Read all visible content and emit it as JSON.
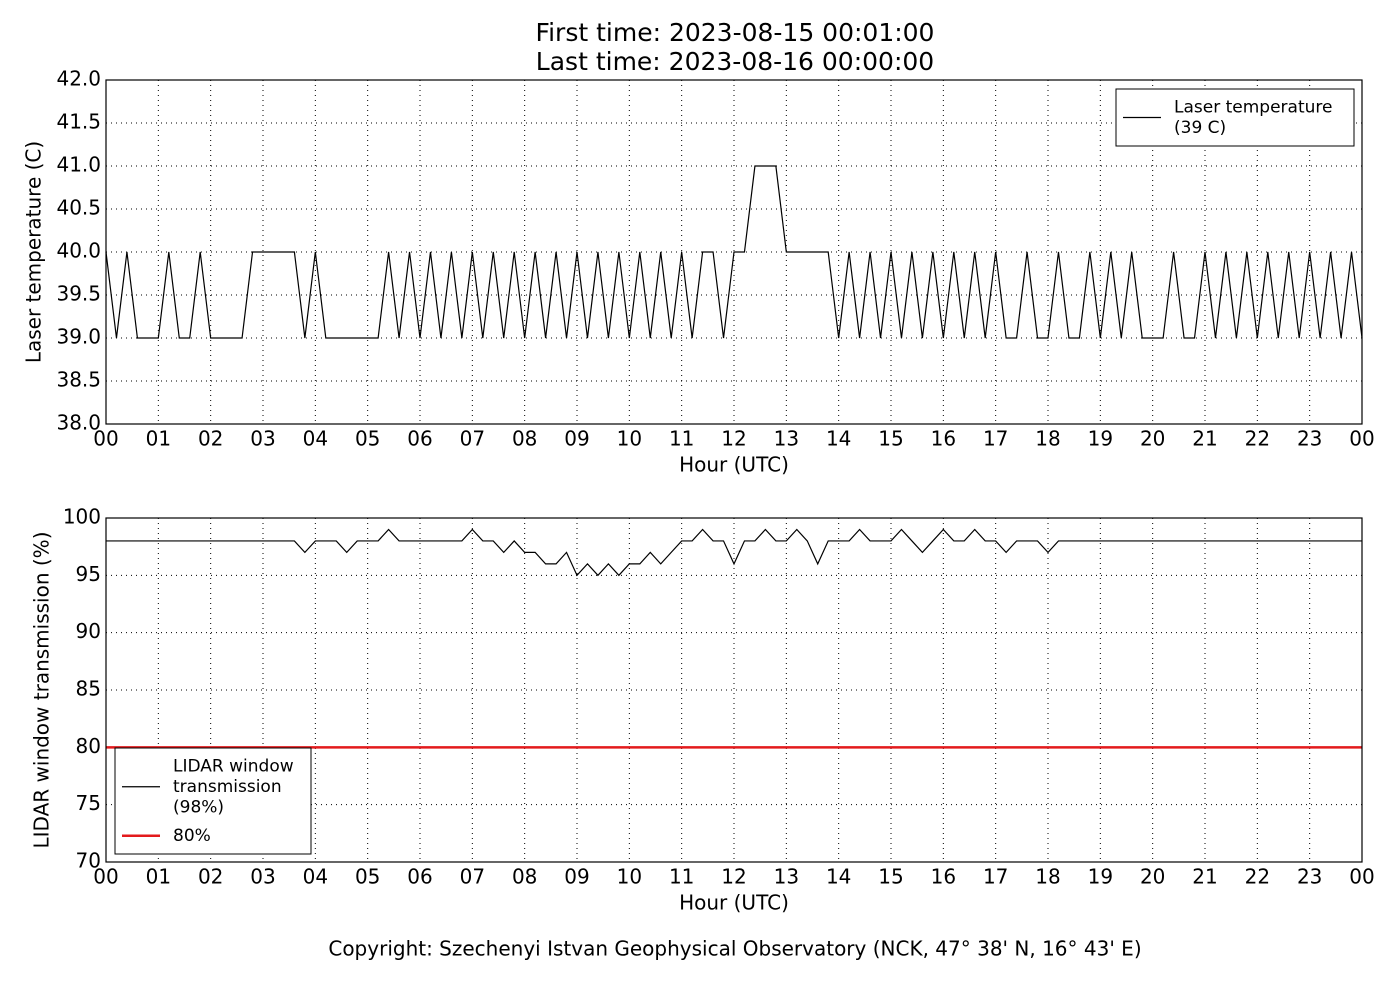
{
  "chart_data": [
    {
      "type": "line",
      "title": "First time: 2023-08-15 00:01:00",
      "subtitle": "Last time: 2023-08-16 00:00:00",
      "x_label": "Hour (UTC)",
      "y_label": "Laser temperature (C)",
      "xlim": [
        0,
        24
      ],
      "xticks": [
        {
          "value": 0,
          "label": "00"
        },
        {
          "value": 1,
          "label": "01"
        },
        {
          "value": 2,
          "label": "02"
        },
        {
          "value": 3,
          "label": "03"
        },
        {
          "value": 4,
          "label": "04"
        },
        {
          "value": 5,
          "label": "05"
        },
        {
          "value": 6,
          "label": "06"
        },
        {
          "value": 7,
          "label": "07"
        },
        {
          "value": 8,
          "label": "08"
        },
        {
          "value": 9,
          "label": "09"
        },
        {
          "value": 10,
          "label": "10"
        },
        {
          "value": 11,
          "label": "11"
        },
        {
          "value": 12,
          "label": "12"
        },
        {
          "value": 13,
          "label": "13"
        },
        {
          "value": 14,
          "label": "14"
        },
        {
          "value": 15,
          "label": "15"
        },
        {
          "value": 16,
          "label": "16"
        },
        {
          "value": 17,
          "label": "17"
        },
        {
          "value": 18,
          "label": "18"
        },
        {
          "value": 19,
          "label": "19"
        },
        {
          "value": 20,
          "label": "20"
        },
        {
          "value": 21,
          "label": "21"
        },
        {
          "value": 22,
          "label": "22"
        },
        {
          "value": 23,
          "label": "23"
        },
        {
          "value": 24,
          "label": "00"
        }
      ],
      "ylim": [
        38,
        42
      ],
      "yticks": [
        {
          "value": 38,
          "label": "38.0"
        },
        {
          "value": 38.5,
          "label": "38.5"
        },
        {
          "value": 39,
          "label": "39.0"
        },
        {
          "value": 39.5,
          "label": "39.5"
        },
        {
          "value": 40,
          "label": "40.0"
        },
        {
          "value": 40.5,
          "label": "40.5"
        },
        {
          "value": 41,
          "label": "41.0"
        },
        {
          "value": 41.5,
          "label": "41.5"
        },
        {
          "value": 42,
          "label": "42.0"
        }
      ],
      "grid": true,
      "legend": "upper right",
      "series": [
        {
          "name": [
            "Laser temperature",
            "(39 C)"
          ],
          "color": "#000000",
          "x": [
            0,
            0.2,
            0.4,
            0.6,
            0.8,
            1,
            1.2,
            1.4,
            1.6,
            1.8,
            2,
            2.2,
            2.4,
            2.6,
            2.8,
            3,
            3.2,
            3.4,
            3.6,
            3.8,
            4,
            4.2,
            4.4,
            4.6,
            4.8,
            5,
            5.2,
            5.4,
            5.6,
            5.8,
            6,
            6.2,
            6.4,
            6.6,
            6.8,
            7,
            7.2,
            7.4,
            7.6,
            7.8,
            8,
            8.2,
            8.4,
            8.6,
            8.8,
            9,
            9.2,
            9.4,
            9.6,
            9.8,
            10,
            10.2,
            10.4,
            10.6,
            10.8,
            11,
            11.2,
            11.4,
            11.6,
            11.8,
            12,
            12.2,
            12.4,
            12.6,
            12.8,
            13,
            13.2,
            13.4,
            13.6,
            13.8,
            14,
            14.2,
            14.4,
            14.6,
            14.8,
            15,
            15.2,
            15.4,
            15.6,
            15.8,
            16,
            16.2,
            16.4,
            16.6,
            16.8,
            17,
            17.2,
            17.4,
            17.6,
            17.8,
            18,
            18.2,
            18.4,
            18.6,
            18.8,
            19,
            19.2,
            19.4,
            19.6,
            19.8,
            20,
            20.2,
            20.4,
            20.6,
            20.8,
            21,
            21.2,
            21.4,
            21.6,
            21.8,
            22,
            22.2,
            22.4,
            22.6,
            22.8,
            23,
            23.2,
            23.4,
            23.6,
            23.8,
            24
          ],
          "values": [
            40,
            39,
            40,
            39,
            39,
            39,
            40,
            39,
            39,
            40,
            39,
            39,
            39,
            39,
            40,
            40,
            40,
            40,
            40,
            39,
            40,
            39,
            39,
            39,
            39,
            39,
            39,
            40,
            39,
            40,
            39,
            40,
            39,
            40,
            39,
            40,
            39,
            40,
            39,
            40,
            39,
            40,
            39,
            40,
            39,
            40,
            39,
            40,
            39,
            40,
            39,
            40,
            39,
            40,
            39,
            40,
            39,
            40,
            40,
            39,
            40,
            40,
            41,
            41,
            41,
            40,
            40,
            40,
            40,
            40,
            39,
            40,
            39,
            40,
            39,
            40,
            39,
            40,
            39,
            40,
            39,
            40,
            39,
            40,
            39,
            40,
            39,
            39,
            40,
            39,
            39,
            40,
            39,
            39,
            40,
            39,
            40,
            39,
            40,
            39,
            39,
            39,
            40,
            39,
            39,
            40,
            39,
            40,
            39,
            40,
            39,
            40,
            39,
            40,
            39,
            40,
            39,
            40,
            39,
            40,
            39
          ]
        }
      ]
    },
    {
      "type": "line",
      "x_label": "Hour (UTC)",
      "y_label": "LIDAR window transmission (%)",
      "xlim": [
        0,
        24
      ],
      "xticks": [
        {
          "value": 0,
          "label": "00"
        },
        {
          "value": 1,
          "label": "01"
        },
        {
          "value": 2,
          "label": "02"
        },
        {
          "value": 3,
          "label": "03"
        },
        {
          "value": 4,
          "label": "04"
        },
        {
          "value": 5,
          "label": "05"
        },
        {
          "value": 6,
          "label": "06"
        },
        {
          "value": 7,
          "label": "07"
        },
        {
          "value": 8,
          "label": "08"
        },
        {
          "value": 9,
          "label": "09"
        },
        {
          "value": 10,
          "label": "10"
        },
        {
          "value": 11,
          "label": "11"
        },
        {
          "value": 12,
          "label": "12"
        },
        {
          "value": 13,
          "label": "13"
        },
        {
          "value": 14,
          "label": "14"
        },
        {
          "value": 15,
          "label": "15"
        },
        {
          "value": 16,
          "label": "16"
        },
        {
          "value": 17,
          "label": "17"
        },
        {
          "value": 18,
          "label": "18"
        },
        {
          "value": 19,
          "label": "19"
        },
        {
          "value": 20,
          "label": "20"
        },
        {
          "value": 21,
          "label": "21"
        },
        {
          "value": 22,
          "label": "22"
        },
        {
          "value": 23,
          "label": "23"
        },
        {
          "value": 24,
          "label": "00"
        }
      ],
      "ylim": [
        70,
        100
      ],
      "yticks": [
        70,
        75,
        80,
        85,
        90,
        95,
        100
      ],
      "grid": true,
      "legend": "lower left",
      "series": [
        {
          "name": [
            "LIDAR window",
            "transmission",
            "(98%)"
          ],
          "color": "#000000",
          "x": [
            0,
            0.2,
            0.4,
            0.6,
            0.8,
            1,
            1.2,
            1.4,
            1.6,
            1.8,
            2,
            2.2,
            2.4,
            2.6,
            2.8,
            3,
            3.2,
            3.4,
            3.6,
            3.8,
            4,
            4.2,
            4.4,
            4.6,
            4.8,
            5,
            5.2,
            5.4,
            5.6,
            5.8,
            6,
            6.2,
            6.4,
            6.6,
            6.8,
            7,
            7.2,
            7.4,
            7.6,
            7.8,
            8,
            8.2,
            8.4,
            8.6,
            8.8,
            9,
            9.2,
            9.4,
            9.6,
            9.8,
            10,
            10.2,
            10.4,
            10.6,
            10.8,
            11,
            11.2,
            11.4,
            11.6,
            11.8,
            12,
            12.2,
            12.4,
            12.6,
            12.8,
            13,
            13.2,
            13.4,
            13.6,
            13.8,
            14,
            14.2,
            14.4,
            14.6,
            14.8,
            15,
            15.2,
            15.4,
            15.6,
            15.8,
            16,
            16.2,
            16.4,
            16.6,
            16.8,
            17,
            17.2,
            17.4,
            17.6,
            17.8,
            18,
            18.2,
            18.4,
            18.6,
            18.8,
            19,
            19.2,
            19.4,
            19.6,
            19.8,
            20,
            20.2,
            20.4,
            20.6,
            20.8,
            21,
            21.2,
            21.4,
            21.6,
            21.8,
            22,
            22.2,
            22.4,
            22.6,
            22.8,
            23,
            23.2,
            23.4,
            23.6,
            23.8,
            24
          ],
          "values": [
            98,
            98,
            98,
            98,
            98,
            98,
            98,
            98,
            98,
            98,
            98,
            98,
            98,
            98,
            98,
            98,
            98,
            98,
            98,
            97,
            98,
            98,
            98,
            97,
            98,
            98,
            98,
            99,
            98,
            98,
            98,
            98,
            98,
            98,
            98,
            99,
            98,
            98,
            97,
            98,
            97,
            97,
            96,
            96,
            97,
            95,
            96,
            95,
            96,
            95,
            96,
            96,
            97,
            96,
            97,
            98,
            98,
            99,
            98,
            98,
            96,
            98,
            98,
            99,
            98,
            98,
            99,
            98,
            96,
            98,
            98,
            98,
            99,
            98,
            98,
            98,
            99,
            98,
            97,
            98,
            99,
            98,
            98,
            99,
            98,
            98,
            97,
            98,
            98,
            98,
            97,
            98,
            98,
            98,
            98,
            98,
            98,
            98,
            98,
            98,
            98,
            98,
            98,
            98,
            98,
            98,
            98,
            98,
            98,
            98,
            98,
            98,
            98,
            98,
            98,
            98,
            98,
            98,
            98,
            98,
            98
          ]
        },
        {
          "name": [
            "80%"
          ],
          "color": "#e31a1c",
          "x": [
            0,
            24
          ],
          "values": [
            80,
            80
          ]
        }
      ]
    }
  ],
  "footer": "Copyright: Szechenyi Istvan Geophysical Observatory (NCK, 47° 38' N, 16° 43' E)"
}
